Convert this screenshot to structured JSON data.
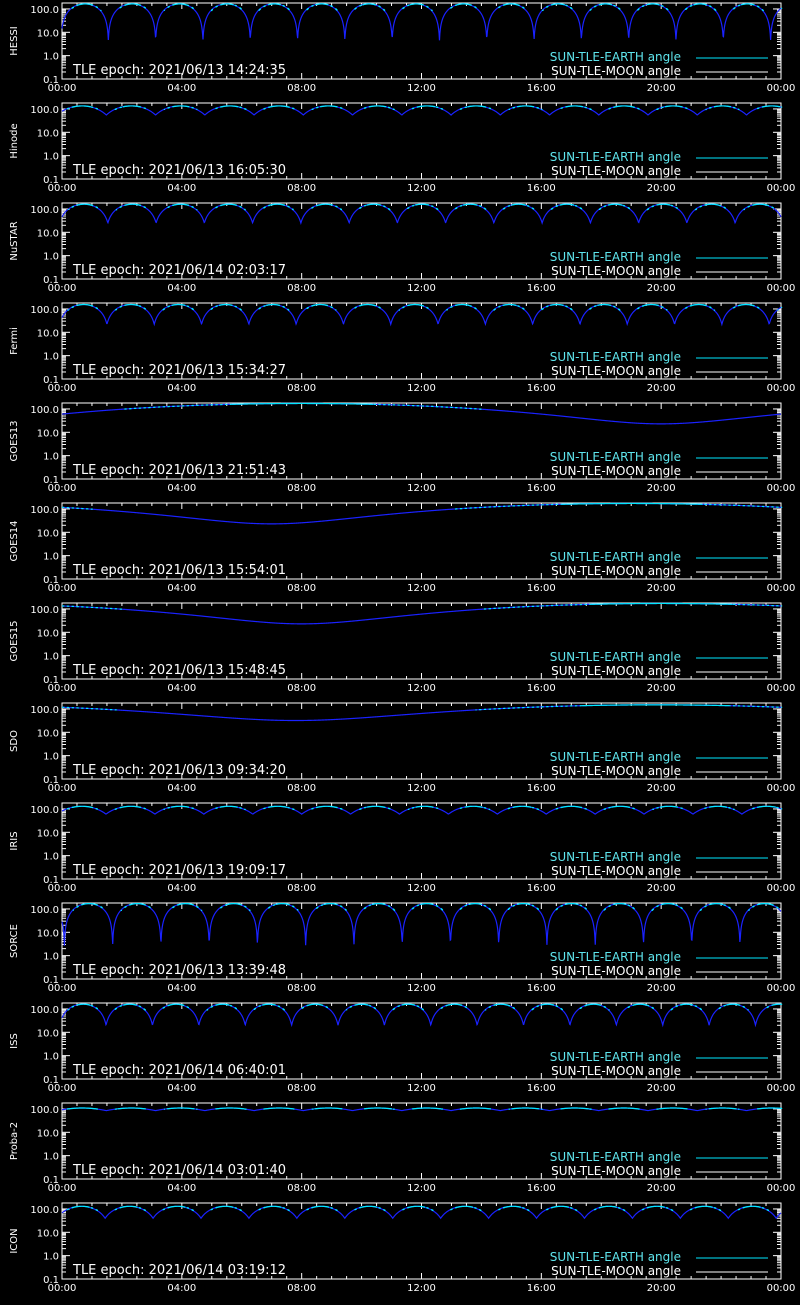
{
  "colors": {
    "background": "#000000",
    "axes": "#ffffff",
    "earth_line": "#00e8ff",
    "earth_label": "#5fe6ee",
    "moon_line": "#ffffff",
    "model_line": "#1a22ff"
  },
  "x_tick_labels": [
    "00:00",
    "04:00",
    "08:00",
    "12:00",
    "16:00",
    "20:00",
    "00:00"
  ],
  "y_tick_labels": [
    "100.0",
    "10.0",
    "1.0",
    "0.1"
  ],
  "legend": {
    "earth": "SUN-TLE-EARTH angle",
    "moon": "SUN-TLE-MOON angle"
  },
  "chart_data": [
    {
      "type": "line",
      "ylabel": "HESSI",
      "epoch": "TLE epoch: 2021/06/13 14:24:35",
      "x_range_hours": [
        0,
        24
      ],
      "ylim": [
        0.1,
        180
      ],
      "y_scale": "log",
      "curve": "orbital",
      "orbits": 15.2,
      "max_angle": 165,
      "min_angle": 4.5,
      "phase": 0.02,
      "series": [
        {
          "name": "SUN-TLE-EARTH angle"
        },
        {
          "name": "SUN-TLE-MOON angle"
        }
      ]
    },
    {
      "type": "line",
      "ylabel": "Hinode",
      "epoch": "TLE epoch: 2021/06/13 16:05:30",
      "x_range_hours": [
        0,
        24
      ],
      "ylim": [
        0.1,
        180
      ],
      "y_scale": "log",
      "curve": "orbital",
      "orbits": 14.6,
      "max_angle": 135,
      "min_angle": 55,
      "phase": 0.1,
      "series": [
        {
          "name": "SUN-TLE-EARTH angle"
        },
        {
          "name": "SUN-TLE-MOON angle"
        }
      ]
    },
    {
      "type": "line",
      "ylabel": "NuSTAR",
      "epoch": "TLE epoch: 2021/06/14 02:03:17",
      "x_range_hours": [
        0,
        24
      ],
      "ylim": [
        0.1,
        180
      ],
      "y_scale": "log",
      "curve": "orbital",
      "orbits": 14.9,
      "max_angle": 160,
      "min_angle": 25,
      "phase": 0.05,
      "series": [
        {
          "name": "SUN-TLE-EARTH angle"
        },
        {
          "name": "SUN-TLE-MOON angle"
        }
      ]
    },
    {
      "type": "line",
      "ylabel": "Fermi",
      "epoch": "TLE epoch: 2021/06/13 15:34:27",
      "x_range_hours": [
        0,
        24
      ],
      "ylim": [
        0.1,
        180
      ],
      "y_scale": "log",
      "curve": "orbital",
      "orbits": 15.2,
      "max_angle": 155,
      "min_angle": 22,
      "phase": 0.05,
      "series": [
        {
          "name": "SUN-TLE-EARTH angle"
        },
        {
          "name": "SUN-TLE-MOON angle"
        }
      ]
    },
    {
      "type": "line",
      "ylabel": "GOES13",
      "epoch": "TLE epoch: 2021/06/13 21:51:43",
      "x_range_hours": [
        0,
        24
      ],
      "ylim": [
        0.1,
        180
      ],
      "y_scale": "log",
      "curve": "geo",
      "max_angle": 172,
      "min_angle": 23,
      "min_hour": 20.0,
      "series": [
        {
          "name": "SUN-TLE-EARTH angle"
        },
        {
          "name": "SUN-TLE-MOON angle"
        }
      ]
    },
    {
      "type": "line",
      "ylabel": "GOES14",
      "epoch": "TLE epoch: 2021/06/13 15:54:01",
      "x_range_hours": [
        0,
        24
      ],
      "ylim": [
        0.1,
        180
      ],
      "y_scale": "log",
      "curve": "geo",
      "max_angle": 172,
      "min_angle": 23,
      "min_hour": 7.0,
      "series": [
        {
          "name": "SUN-TLE-EARTH angle"
        },
        {
          "name": "SUN-TLE-MOON angle"
        }
      ]
    },
    {
      "type": "line",
      "ylabel": "GOES15",
      "epoch": "TLE epoch: 2021/06/13 15:48:45",
      "x_range_hours": [
        0,
        24
      ],
      "ylim": [
        0.1,
        180
      ],
      "y_scale": "log",
      "curve": "geo",
      "max_angle": 172,
      "min_angle": 23,
      "min_hour": 8.0,
      "series": [
        {
          "name": "SUN-TLE-EARTH angle"
        },
        {
          "name": "SUN-TLE-MOON angle"
        }
      ]
    },
    {
      "type": "line",
      "ylabel": "SDO",
      "epoch": "TLE epoch: 2021/06/13 09:34:20",
      "x_range_hours": [
        0,
        24
      ],
      "ylim": [
        0.1,
        180
      ],
      "y_scale": "log",
      "curve": "geo",
      "max_angle": 150,
      "min_angle": 32,
      "min_hour": 7.8,
      "series": [
        {
          "name": "SUN-TLE-EARTH angle"
        },
        {
          "name": "SUN-TLE-MOON angle"
        }
      ]
    },
    {
      "type": "line",
      "ylabel": "IRIS",
      "epoch": "TLE epoch: 2021/06/13 19:09:17",
      "x_range_hours": [
        0,
        24
      ],
      "ylim": [
        0.1,
        180
      ],
      "y_scale": "log",
      "curve": "orbital",
      "orbits": 14.7,
      "max_angle": 130,
      "min_angle": 60,
      "phase": 0.1,
      "series": [
        {
          "name": "SUN-TLE-EARTH angle"
        },
        {
          "name": "SUN-TLE-MOON angle"
        }
      ]
    },
    {
      "type": "line",
      "ylabel": "SORCE",
      "epoch": "TLE epoch: 2021/06/13 13:39:48",
      "x_range_hours": [
        0,
        24
      ],
      "ylim": [
        0.1,
        180
      ],
      "y_scale": "log",
      "curve": "orbital",
      "orbits": 14.9,
      "max_angle": 170,
      "min_angle": 2.5,
      "phase": 0.95,
      "series": [
        {
          "name": "SUN-TLE-EARTH angle"
        },
        {
          "name": "SUN-TLE-MOON angle"
        }
      ]
    },
    {
      "type": "line",
      "ylabel": "ISS",
      "epoch": "TLE epoch: 2021/06/14 06:40:01",
      "x_range_hours": [
        0,
        24
      ],
      "ylim": [
        0.1,
        180
      ],
      "y_scale": "log",
      "curve": "orbital",
      "orbits": 15.5,
      "max_angle": 160,
      "min_angle": 20,
      "phase": 0.05,
      "series": [
        {
          "name": "SUN-TLE-EARTH angle"
        },
        {
          "name": "SUN-TLE-MOON angle"
        }
      ]
    },
    {
      "type": "line",
      "ylabel": "Proba-2",
      "epoch": "TLE epoch: 2021/06/14 03:01:40",
      "x_range_hours": [
        0,
        24
      ],
      "ylim": [
        0.1,
        180
      ],
      "y_scale": "log",
      "curve": "orbital",
      "orbits": 14.6,
      "max_angle": 110,
      "min_angle": 85,
      "phase": 0.1,
      "series": [
        {
          "name": "SUN-TLE-EARTH angle"
        },
        {
          "name": "SUN-TLE-MOON angle"
        }
      ]
    },
    {
      "type": "line",
      "ylabel": "ICON",
      "epoch": "TLE epoch: 2021/06/14 03:19:12",
      "x_range_hours": [
        0,
        24
      ],
      "ylim": [
        0.1,
        180
      ],
      "y_scale": "log",
      "curve": "orbital",
      "orbits": 15.0,
      "max_angle": 130,
      "min_angle": 40,
      "phase": 0.1,
      "series": [
        {
          "name": "SUN-TLE-EARTH angle"
        },
        {
          "name": "SUN-TLE-MOON angle"
        }
      ]
    }
  ]
}
